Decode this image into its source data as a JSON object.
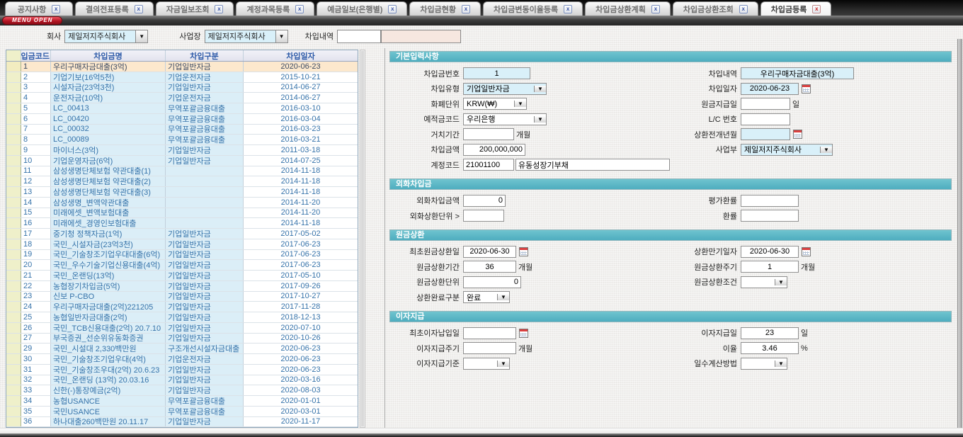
{
  "colors": {
    "accent_teal": "#52b3c3",
    "selected_row": "#fce8cd",
    "readonly_blue": "#d9f0f9",
    "table_text_blue": "#3673aa",
    "menu_red": "#b01220"
  },
  "tabs": [
    {
      "label": "공지사항",
      "active": false
    },
    {
      "label": "결의전표등록",
      "active": false
    },
    {
      "label": "자금일보조회",
      "active": false
    },
    {
      "label": "계정과목등록",
      "active": false
    },
    {
      "label": "예금일보(은행별)",
      "active": false
    },
    {
      "label": "차입금현황",
      "active": false
    },
    {
      "label": "차입금변동이율등록",
      "active": false
    },
    {
      "label": "차입금상환계획",
      "active": false
    },
    {
      "label": "차입금상환조회",
      "active": false
    },
    {
      "label": "차입금등록",
      "active": true
    }
  ],
  "menu": {
    "open_button_label": "MENU OPEN"
  },
  "filters": {
    "company_label": "회사",
    "company_value": "제일저지주식회사",
    "site_label": "사업장",
    "site_value": "제일저지주식회사",
    "loan_desc_label": "차입내역",
    "loan_desc_value": "",
    "loan_desc_value2": ""
  },
  "table": {
    "headers": [
      "차입금코드",
      "차입금명",
      "차입구분",
      "차입일자"
    ],
    "selected_index": 0,
    "rows": [
      [
        "1",
        "우리구매자금대출(3억)",
        "기업일반자금",
        "2020-06-23"
      ],
      [
        "2",
        "기업기보(16억5천)",
        "기업운전자금",
        "2015-10-21"
      ],
      [
        "3",
        "시설자금(23억3천)",
        "기업일반자금",
        "2014-06-27"
      ],
      [
        "4",
        "운전자금(10억)",
        "기업운전자금",
        "2014-06-27"
      ],
      [
        "5",
        "LC_00413",
        "무역포괄금융대출",
        "2016-03-10"
      ],
      [
        "6",
        "LC_00420",
        "무역포괄금융대출",
        "2016-03-04"
      ],
      [
        "7",
        "LC_00032",
        "무역포괄금융대출",
        "2016-03-23"
      ],
      [
        "8",
        "LC_00089",
        "무역포괄금융대출",
        "2016-03-21"
      ],
      [
        "9",
        "마이너스(3억)",
        "기업일반자금",
        "2011-03-18"
      ],
      [
        "10",
        "기업운영자금(6억)",
        "기업일반자금",
        "2014-07-25"
      ],
      [
        "11",
        "삼성생명단체보험 약관대출(1)",
        "",
        "2014-11-18"
      ],
      [
        "12",
        "삼성생명단체보험 약관대출(2)",
        "",
        "2014-11-18"
      ],
      [
        "13",
        "삼성생명단체보험 약관대출(3)",
        "",
        "2014-11-18"
      ],
      [
        "14",
        "삼성생명_변액약관대출",
        "",
        "2014-11-20"
      ],
      [
        "15",
        "미래에셋_변액보험대출",
        "",
        "2014-11-20"
      ],
      [
        "16",
        "미래에셋_경영인보험대출",
        "",
        "2014-11-18"
      ],
      [
        "17",
        "중기청 정책자금(1억)",
        "기업일반자금",
        "2017-05-02"
      ],
      [
        "18",
        "국민_시설자금(23억3천)",
        "기업일반자금",
        "2017-06-23"
      ],
      [
        "19",
        "국민_기술창조기업우대대출(6억)",
        "기업일반자금",
        "2017-06-23"
      ],
      [
        "20",
        "국민_우수기술기업신용대출(4억)",
        "기업일반자금",
        "2017-06-23"
      ],
      [
        "21",
        "국민_온랜딩(13억)",
        "기업일반자금",
        "2017-05-10"
      ],
      [
        "22",
        "농협장기차입금(5억)",
        "기업일반자금",
        "2017-09-26"
      ],
      [
        "23",
        "신보 P-CBO",
        "기업일반자금",
        "2017-10-27"
      ],
      [
        "24",
        "우리구매자금대출(2억)221205",
        "기업일반자금",
        "2017-11-28"
      ],
      [
        "25",
        "농협일반자금대출(2억)",
        "기업일반자금",
        "2018-12-13"
      ],
      [
        "26",
        "국민_TCB신용대출(2억) 20.7.10",
        "기업일반자금",
        "2020-07-10"
      ],
      [
        "27",
        "부국증권_선순위유동화증권",
        "기업일반자금",
        "2020-10-26"
      ],
      [
        "29",
        "국민_시설대 2,330백만원",
        "구조개선시설자금대출",
        "2020-06-23"
      ],
      [
        "30",
        "국민_기술창조기업우대(4억)",
        "기업운전자금",
        "2020-06-23"
      ],
      [
        "31",
        "국민_기술창조우대(2억) 20.6.23",
        "기업일반자금",
        "2020-06-23"
      ],
      [
        "32",
        "국민_온랜딩 (13억) 20.03.16",
        "기업일반자금",
        "2020-03-16"
      ],
      [
        "33",
        "신한(-)통장예금(2억)",
        "기업일반자금",
        "2020-08-03"
      ],
      [
        "34",
        "농협USANCE",
        "무역포괄금융대출",
        "2020-01-01"
      ],
      [
        "35",
        "국민USANCE",
        "무역포괄금융대출",
        "2020-03-01"
      ],
      [
        "36",
        "하나대출260백만원 20.11.17",
        "기업일반자금",
        "2020-11-17"
      ]
    ]
  },
  "form": {
    "basic": {
      "title": "기본입력사항",
      "loan_no": {
        "label": "차입금번호",
        "value": "1"
      },
      "loan_type": {
        "label": "차입유형",
        "value": "기업일반자금"
      },
      "currency": {
        "label": "화폐단위",
        "value": "KRW(₩)"
      },
      "deposit_code": {
        "label": "예적금코드",
        "value": "우리은행"
      },
      "grace_period": {
        "label": "거치기간",
        "value": "",
        "suffix": "개월"
      },
      "loan_amount": {
        "label": "차입금액",
        "value": "200,000,000"
      },
      "account_code": {
        "label": "계정코드",
        "code": "21001100",
        "name": "유동성장기부채"
      },
      "loan_desc": {
        "label": "차입내역",
        "value": "우리구매자금대출(3억)"
      },
      "loan_date": {
        "label": "차입일자",
        "value": "2020-06-23"
      },
      "principal_pay_day": {
        "label": "원금지급일",
        "value": "",
        "suffix": "일"
      },
      "lc_no": {
        "label": "L/C 번호",
        "value": ""
      },
      "repay_open_ym": {
        "label": "상환전개년월",
        "value": ""
      },
      "division": {
        "label": "사업부",
        "value": "제일저지주식회사"
      }
    },
    "fx": {
      "title": "외화차입금",
      "fx_amount": {
        "label": "외화차입금액",
        "value": "0"
      },
      "eval_rate": {
        "label": "평가환률",
        "value": ""
      },
      "fx_repay_unit": {
        "label": "외화상환단위 >",
        "value": ""
      },
      "ex_rate": {
        "label": "환률",
        "value": ""
      }
    },
    "principal": {
      "title": "원금상환",
      "first_repay_date": {
        "label": "최초원금상환일",
        "value": "2020-06-30"
      },
      "maturity_date": {
        "label": "상환만기일자",
        "value": "2020-06-30"
      },
      "repay_period": {
        "label": "원금상환기간",
        "value": "36",
        "suffix": "개월"
      },
      "repay_cycle": {
        "label": "원금상환주기",
        "value": "1",
        "suffix": "개월"
      },
      "repay_unit": {
        "label": "원금상환단위",
        "value": "0"
      },
      "repay_cond": {
        "label": "원금상환조건",
        "value": ""
      },
      "repay_done": {
        "label": "상환완료구분",
        "value": "완료"
      }
    },
    "interest": {
      "title": "이자지급",
      "first_int_date": {
        "label": "최초이자납입일",
        "value": ""
      },
      "int_pay_day": {
        "label": "이자지급일",
        "value": "23",
        "suffix": "일"
      },
      "int_cycle": {
        "label": "이자지급주기",
        "value": "",
        "suffix": "개월"
      },
      "int_rate": {
        "label": "이율",
        "value": "3.46",
        "suffix": "%"
      },
      "int_basis": {
        "label": "이자지급기준",
        "value": ""
      },
      "day_count": {
        "label": "일수계산방법",
        "value": ""
      }
    }
  }
}
